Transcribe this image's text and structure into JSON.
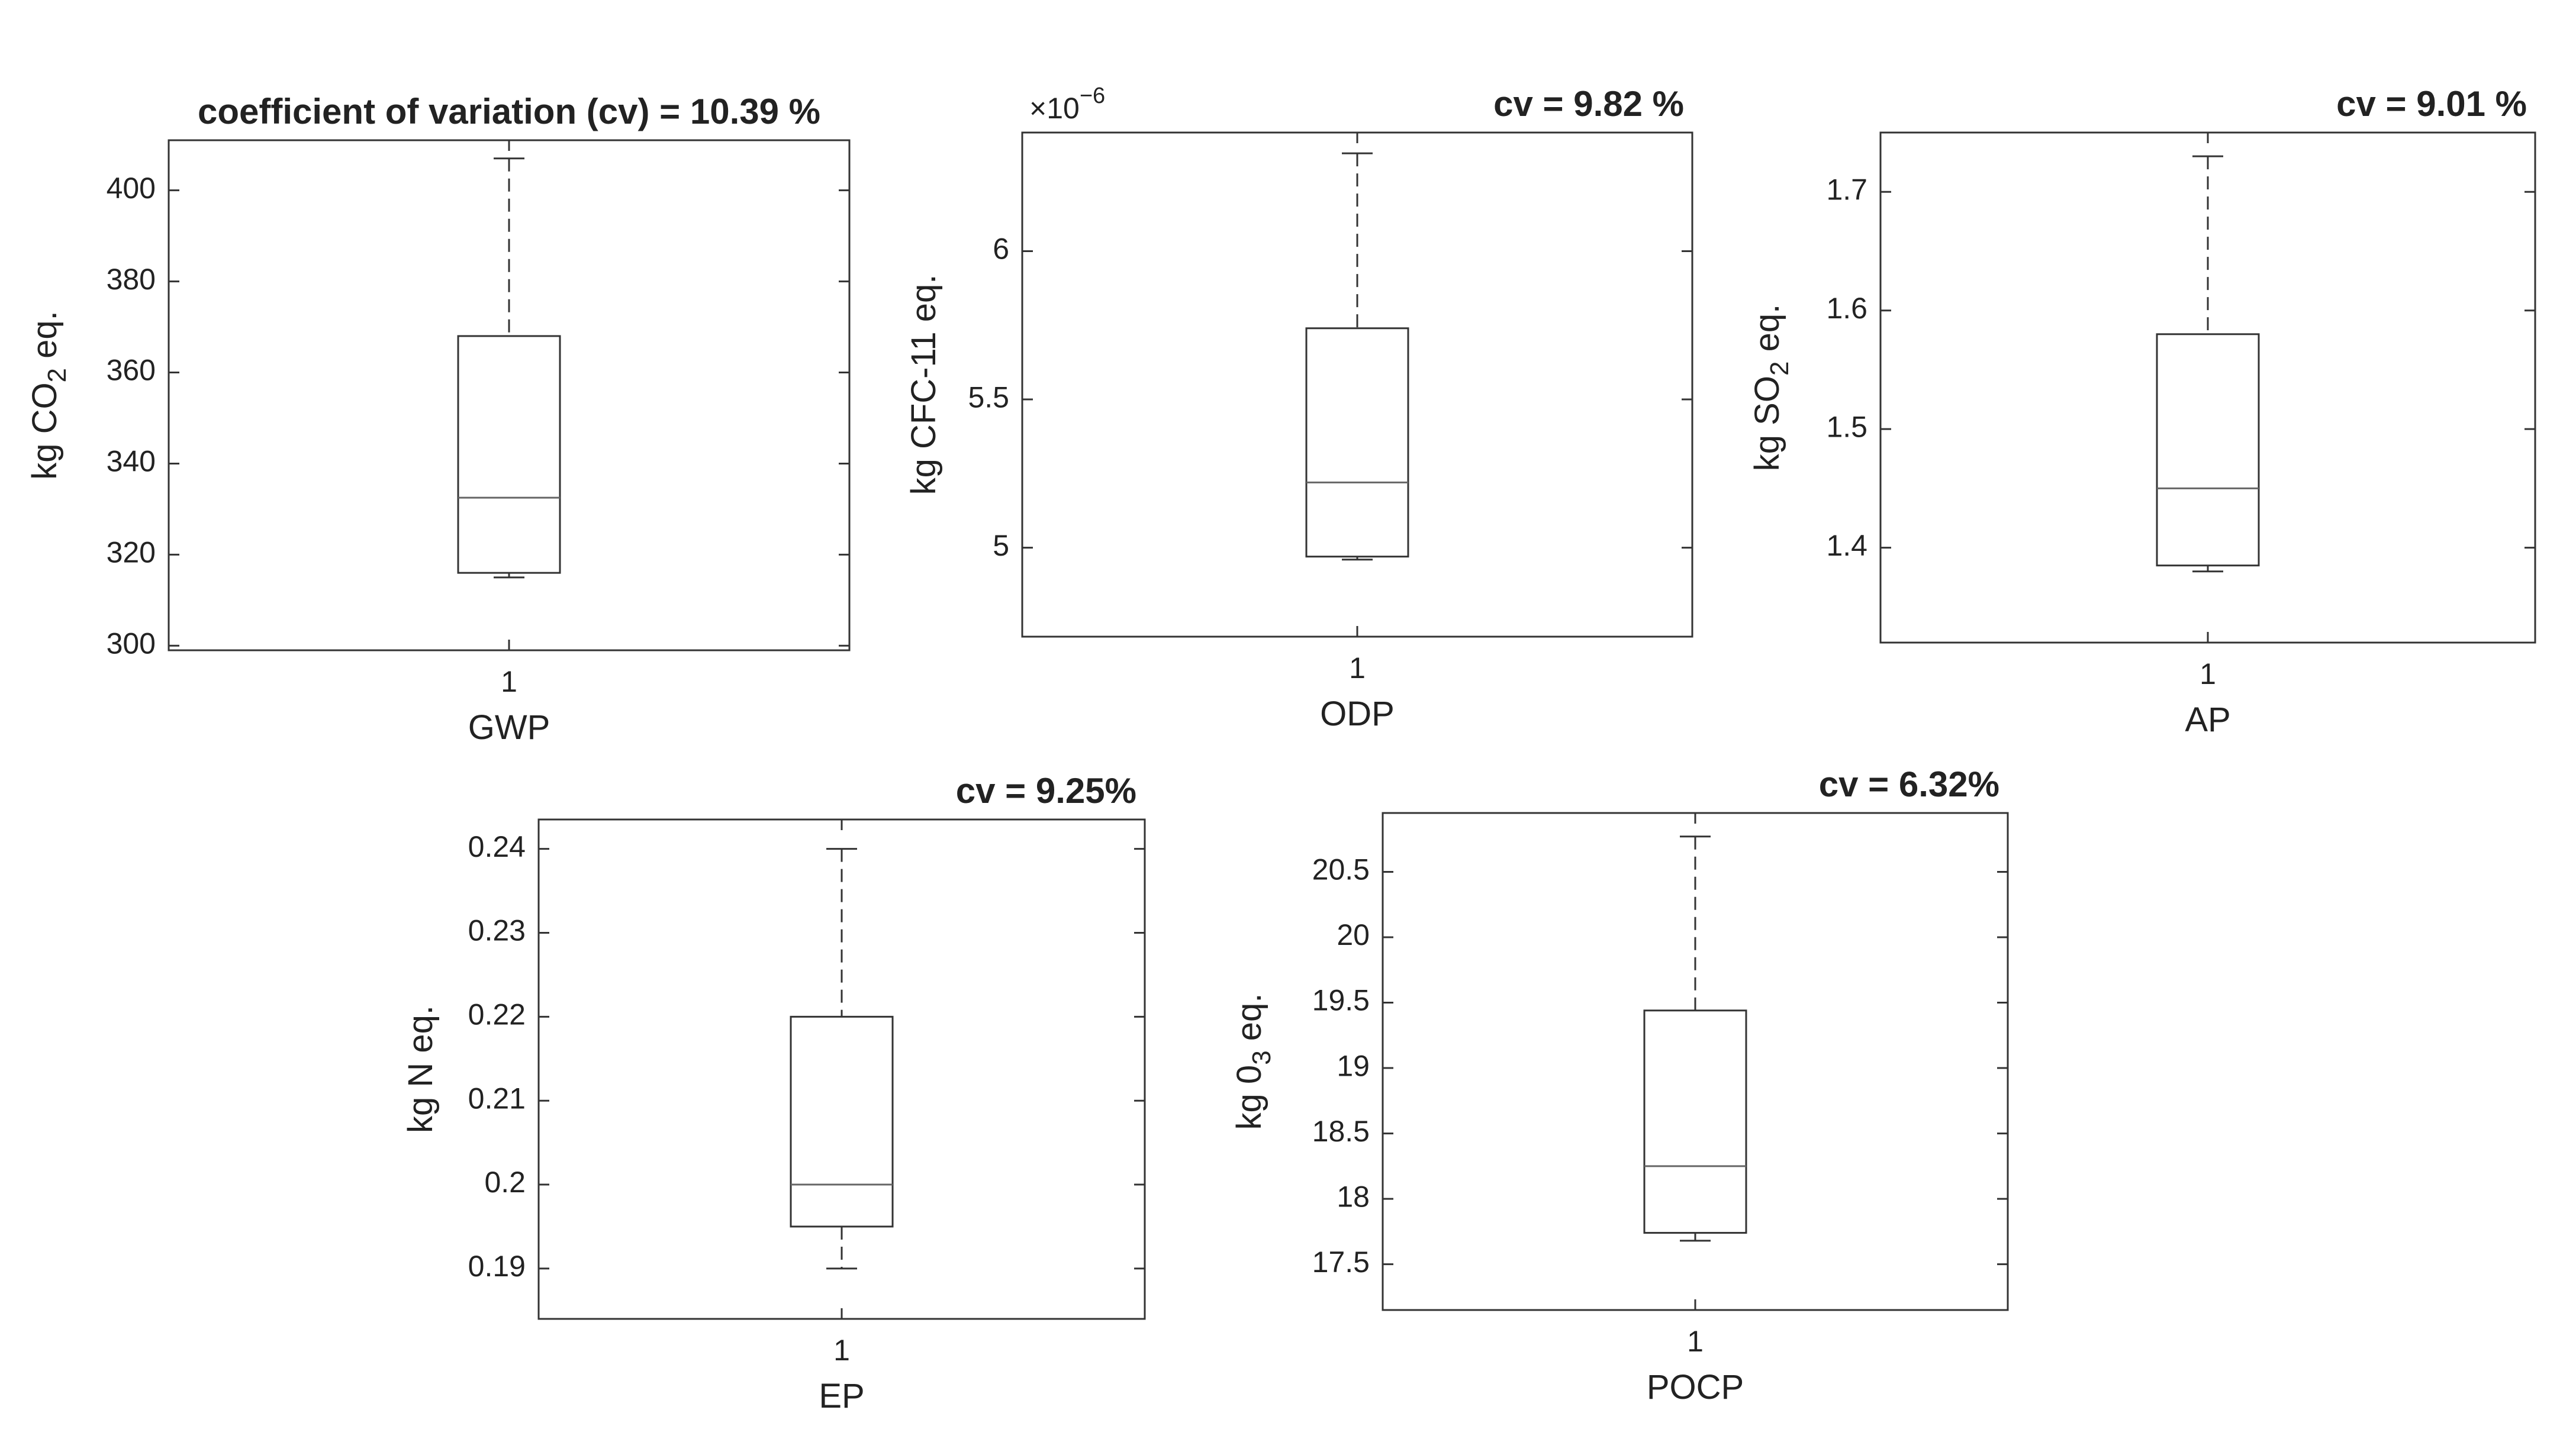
{
  "chart_data": [
    {
      "type": "boxplot",
      "title": "coefficient of variation (cv) = 10.39 %",
      "xtick": "1",
      "xlabel": "GWP",
      "ylabel": {
        "pre": "kg CO",
        "sub": "2",
        "post": " eq."
      },
      "ylim": [
        299,
        411
      ],
      "yticks": [
        300,
        320,
        340,
        360,
        380,
        400
      ],
      "ytick_labels": [
        "300",
        "320",
        "340",
        "360",
        "380",
        "400"
      ],
      "exponent": null,
      "box": {
        "whisker_low": 315,
        "q1": 316,
        "median": 332.5,
        "q3": 368,
        "whisker_high": 407
      }
    },
    {
      "type": "boxplot",
      "title": "cv = 9.82 %",
      "xtick": "1",
      "xlabel": "ODP",
      "ylabel": {
        "pre": "kg CFC-11 eq.",
        "sub": "",
        "post": ""
      },
      "ylim": [
        4.7,
        6.4
      ],
      "yticks": [
        5,
        5.5,
        6
      ],
      "ytick_labels": [
        "5",
        "5.5",
        "6"
      ],
      "exponent": {
        "base": "×10",
        "power": "−6"
      },
      "box": {
        "whisker_low": 4.96,
        "q1": 4.97,
        "median": 5.22,
        "q3": 5.74,
        "whisker_high": 6.33
      }
    },
    {
      "type": "boxplot",
      "title": "cv = 9.01 %",
      "xtick": "1",
      "xlabel": "AP",
      "ylabel": {
        "pre": "kg SO",
        "sub": "2",
        "post": " eq."
      },
      "ylim": [
        1.32,
        1.75
      ],
      "yticks": [
        1.4,
        1.5,
        1.6,
        1.7
      ],
      "ytick_labels": [
        "1.4",
        "1.5",
        "1.6",
        "1.7"
      ],
      "exponent": null,
      "box": {
        "whisker_low": 1.38,
        "q1": 1.385,
        "median": 1.45,
        "q3": 1.58,
        "whisker_high": 1.73
      }
    },
    {
      "type": "boxplot",
      "title": "cv = 9.25%",
      "xtick": "1",
      "xlabel": "EP",
      "ylabel": {
        "pre": "kg N eq.",
        "sub": "",
        "post": ""
      },
      "ylim": [
        0.184,
        0.2435
      ],
      "yticks": [
        0.19,
        0.2,
        0.21,
        0.22,
        0.23,
        0.24
      ],
      "ytick_labels": [
        "0.19",
        "0.2",
        "0.21",
        "0.22",
        "0.23",
        "0.24"
      ],
      "exponent": null,
      "box": {
        "whisker_low": 0.19,
        "q1": 0.195,
        "median": 0.2,
        "q3": 0.22,
        "whisker_high": 0.24
      }
    },
    {
      "type": "boxplot",
      "title": "cv = 6.32%",
      "xtick": "1",
      "xlabel": "POCP",
      "ylabel": {
        "pre": "kg 0",
        "sub": "3",
        "post": " eq."
      },
      "ylim": [
        17.15,
        20.95
      ],
      "yticks": [
        17.5,
        18,
        18.5,
        19,
        19.5,
        20,
        20.5
      ],
      "ytick_labels": [
        "17.5",
        "18",
        "18.5",
        "19",
        "19.5",
        "20",
        "20.5"
      ],
      "exponent": null,
      "box": {
        "whisker_low": 17.68,
        "q1": 17.74,
        "median": 18.25,
        "q3": 19.44,
        "whisker_high": 20.77
      }
    }
  ]
}
